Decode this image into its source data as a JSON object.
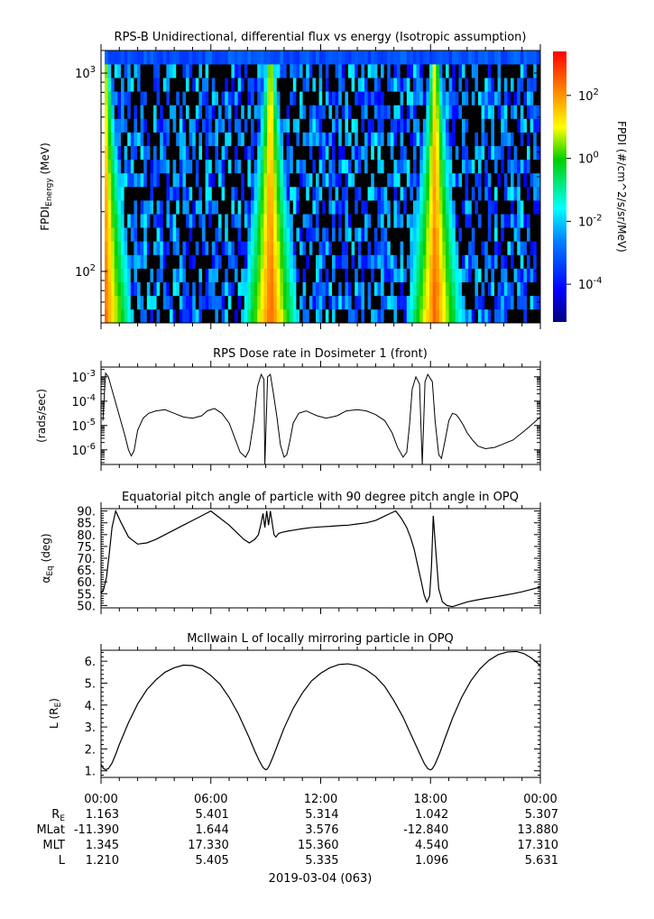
{
  "chart_data": [
    {
      "type": "heatmap",
      "title": "RPS-B  Unidirectional, differential flux vs energy (Isotropic assumption)",
      "ylabel_main": "FPDI",
      "ylabel_sub": "Energy",
      "ylabel_unit": " (MeV)",
      "yscale": "log",
      "ylim": [
        55,
        1300
      ],
      "yticks": [
        {
          "value": 100,
          "base": "10",
          "exp": "2"
        },
        {
          "value": 1000,
          "base": "10",
          "exp": "3"
        }
      ],
      "xlim_hours": [
        0,
        24
      ],
      "energy_bins": 20,
      "colorbar": {
        "label": "FPDI (#/cm^2/s/sr/MeV)",
        "scale": "log",
        "range_log10": [
          -5.2,
          3.4
        ],
        "ticks": [
          {
            "value_log10": 2,
            "base": "10",
            "exp": "2"
          },
          {
            "value_log10": 0,
            "base": "10",
            "exp": "0"
          },
          {
            "value_log10": -2,
            "base": "10",
            "exp": "-2"
          },
          {
            "value_log10": -4,
            "base": "10",
            "exp": "-4"
          }
        ]
      },
      "belt_passes_hours": [
        0.0,
        9.05,
        18.05
      ]
    },
    {
      "type": "line",
      "title": "RPS  Dose rate in Dosimeter 1 (front)",
      "ylabel": "(rads/sec)",
      "yscale": "log",
      "ylim_log10": [
        -6.6,
        -2.6
      ],
      "yticks": [
        {
          "value_log10": -3,
          "base": "10",
          "exp": "-3"
        },
        {
          "value_log10": -4,
          "base": "10",
          "exp": "-4"
        },
        {
          "value_log10": -5,
          "base": "10",
          "exp": "-5"
        },
        {
          "value_log10": -6,
          "base": "10",
          "exp": "-6"
        }
      ],
      "series": [
        {
          "name": "dose rate",
          "x_hours": [
            0.1,
            0.25,
            0.4,
            0.7,
            1.0,
            1.3,
            1.5,
            1.65,
            1.8,
            2.0,
            2.3,
            2.6,
            3.0,
            3.5,
            4.0,
            4.5,
            5.0,
            5.5,
            5.8,
            6.2,
            6.6,
            7.0,
            7.3,
            7.6,
            7.9,
            8.1,
            8.35,
            8.55,
            8.75,
            8.9,
            8.95,
            9.1,
            9.25,
            9.4,
            9.6,
            9.8,
            10.0,
            10.15,
            10.3,
            10.5,
            10.8,
            11.2,
            11.8,
            12.3,
            12.9,
            13.4,
            14.0,
            14.5,
            15.0,
            15.5,
            15.9,
            16.2,
            16.5,
            16.7,
            16.85,
            17.0,
            17.2,
            17.4,
            17.55,
            17.7,
            17.85,
            18.1,
            18.25,
            18.45,
            18.6,
            18.8,
            19.0,
            19.2,
            19.4,
            19.6,
            19.8,
            20.0,
            20.3,
            20.6,
            21.0,
            21.5,
            22.0,
            22.5,
            23.0,
            23.4,
            23.7,
            24.0
          ],
          "log10_values": [
            -4.8,
            -2.85,
            -3.0,
            -3.8,
            -4.6,
            -5.4,
            -6.0,
            -6.25,
            -6.05,
            -5.2,
            -4.7,
            -4.5,
            -4.4,
            -4.35,
            -4.5,
            -4.65,
            -4.7,
            -4.6,
            -4.4,
            -4.3,
            -4.5,
            -4.9,
            -5.5,
            -6.1,
            -6.3,
            -6.0,
            -4.8,
            -3.4,
            -2.9,
            -3.1,
            -6.6,
            -3.0,
            -2.9,
            -3.6,
            -4.6,
            -5.8,
            -6.3,
            -6.2,
            -5.7,
            -4.9,
            -4.5,
            -4.4,
            -4.6,
            -4.7,
            -4.6,
            -4.4,
            -4.35,
            -4.4,
            -4.55,
            -4.8,
            -5.3,
            -5.9,
            -6.3,
            -6.1,
            -5.0,
            -3.5,
            -3.0,
            -3.3,
            -6.6,
            -3.2,
            -2.9,
            -3.2,
            -4.8,
            -6.2,
            -6.35,
            -5.6,
            -4.8,
            -4.5,
            -4.55,
            -4.75,
            -5.0,
            -5.3,
            -5.6,
            -5.85,
            -5.95,
            -5.9,
            -5.75,
            -5.6,
            -5.3,
            -5.05,
            -4.85,
            -4.65
          ]
        }
      ]
    },
    {
      "type": "line",
      "title": "Equatorial pitch angle of particle with 90 degree pitch angle in OPQ",
      "ylabel_main": "α",
      "ylabel_sub": "Eq",
      "ylabel_unit": " (deg)",
      "ylim": [
        49,
        91
      ],
      "yticks": [
        90,
        85,
        80,
        75,
        70,
        65,
        60,
        55,
        50
      ],
      "series": [
        {
          "name": "alpha_eq",
          "x_hours": [
            0.0,
            0.15,
            0.3,
            0.45,
            0.6,
            0.8,
            1.1,
            1.5,
            2.0,
            2.5,
            3.0,
            3.5,
            4.0,
            4.5,
            5.0,
            5.5,
            6.0,
            6.5,
            7.0,
            7.4,
            7.8,
            8.1,
            8.4,
            8.6,
            8.75,
            8.85,
            8.95,
            9.05,
            9.15,
            9.25,
            9.35,
            9.45,
            9.55,
            9.7,
            9.9,
            10.2,
            10.6,
            11.0,
            11.5,
            12.0,
            12.5,
            13.0,
            13.5,
            14.0,
            14.5,
            15.0,
            15.4,
            15.8,
            16.1,
            16.4,
            16.7,
            16.9,
            17.1,
            17.3,
            17.5,
            17.65,
            17.8,
            17.95,
            18.05,
            18.15,
            18.3,
            18.45,
            18.65,
            18.9,
            19.2,
            19.6,
            20.0,
            20.5,
            21.0,
            21.5,
            22.0,
            22.5,
            23.0,
            23.5,
            24.0
          ],
          "values": [
            55,
            57,
            62,
            72,
            83,
            90,
            85,
            79,
            76,
            76.5,
            78,
            80,
            82,
            84,
            86,
            88,
            90,
            87,
            84,
            81,
            78,
            76.5,
            78,
            80,
            85,
            89,
            83,
            90,
            84,
            90,
            85,
            80,
            79,
            80.5,
            81,
            81.5,
            82,
            82.5,
            83,
            83.3,
            83.5,
            83.8,
            84,
            84.5,
            85,
            86,
            87.5,
            89,
            90,
            87,
            83,
            79,
            74,
            67,
            60,
            54.5,
            51.5,
            54,
            66,
            88,
            72,
            57,
            51.5,
            50,
            49.5,
            50.5,
            51.5,
            52.3,
            53,
            53.6,
            54.3,
            55,
            55.8,
            56.8,
            57.8
          ]
        }
      ]
    },
    {
      "type": "line",
      "title": "McIlwain L of locally mirroring particle in OPQ",
      "ylabel_main": "L (R",
      "ylabel_sub": "E",
      "ylabel_unit": ")",
      "ylim": [
        0.7,
        6.5
      ],
      "yticks": [
        6,
        5,
        4,
        3,
        2,
        1
      ],
      "tick_labels": [
        "6.",
        "5.",
        "4.",
        "3.",
        "2.",
        "1."
      ],
      "series": [
        {
          "name": "L",
          "x_hours": [
            0.0,
            0.12,
            0.25,
            0.4,
            0.6,
            0.8,
            1.0,
            1.5,
            2.0,
            2.5,
            3.0,
            3.5,
            4.0,
            4.5,
            5.0,
            5.5,
            6.0,
            6.5,
            7.0,
            7.5,
            7.8,
            8.1,
            8.4,
            8.65,
            8.85,
            9.0,
            9.08,
            9.2,
            9.4,
            9.7,
            10.0,
            10.5,
            11.0,
            11.5,
            12.0,
            12.5,
            13.0,
            13.5,
            14.0,
            14.5,
            15.0,
            15.5,
            16.0,
            16.5,
            16.8,
            17.1,
            17.4,
            17.65,
            17.85,
            18.0,
            18.1,
            18.25,
            18.5,
            18.8,
            19.2,
            19.7,
            20.2,
            20.7,
            21.2,
            21.7,
            22.2,
            22.7,
            23.1,
            23.5,
            23.8,
            24.0
          ],
          "values": [
            1.3,
            1.12,
            1.05,
            1.1,
            1.35,
            1.75,
            2.2,
            3.2,
            4.05,
            4.7,
            5.15,
            5.5,
            5.7,
            5.82,
            5.8,
            5.65,
            5.35,
            4.95,
            4.35,
            3.6,
            3.05,
            2.5,
            1.9,
            1.45,
            1.15,
            1.05,
            1.08,
            1.25,
            1.65,
            2.3,
            2.95,
            3.85,
            4.55,
            5.1,
            5.45,
            5.7,
            5.85,
            5.88,
            5.8,
            5.6,
            5.3,
            4.85,
            4.2,
            3.45,
            2.9,
            2.35,
            1.8,
            1.35,
            1.1,
            1.04,
            1.1,
            1.3,
            1.8,
            2.5,
            3.4,
            4.35,
            5.1,
            5.65,
            6.05,
            6.3,
            6.42,
            6.44,
            6.35,
            6.15,
            5.95,
            5.8
          ]
        }
      ]
    }
  ],
  "time_axis": {
    "tick_labels": [
      "00:00",
      "06:00",
      "12:00",
      "18:00",
      "00:00"
    ],
    "date_label": "2019-03-04 (063)"
  },
  "ephemeris": [
    {
      "label_main": "R",
      "label_sub": "E",
      "values": [
        "1.163",
        "5.401",
        "5.314",
        "1.042",
        "5.307"
      ]
    },
    {
      "label_main": "MLat",
      "label_sub": "",
      "values": [
        "-11.390",
        "1.644",
        "3.576",
        "-12.840",
        "13.880"
      ]
    },
    {
      "label_main": "MLT",
      "label_sub": "",
      "values": [
        "1.345",
        "17.330",
        "15.360",
        "4.540",
        "17.310"
      ]
    },
    {
      "label_main": "L",
      "label_sub": "",
      "values": [
        "1.210",
        "5.405",
        "5.335",
        "1.096",
        "5.631"
      ]
    }
  ],
  "colors": {
    "line": "#000000",
    "frame": "#000000",
    "background": "#ffffff"
  }
}
